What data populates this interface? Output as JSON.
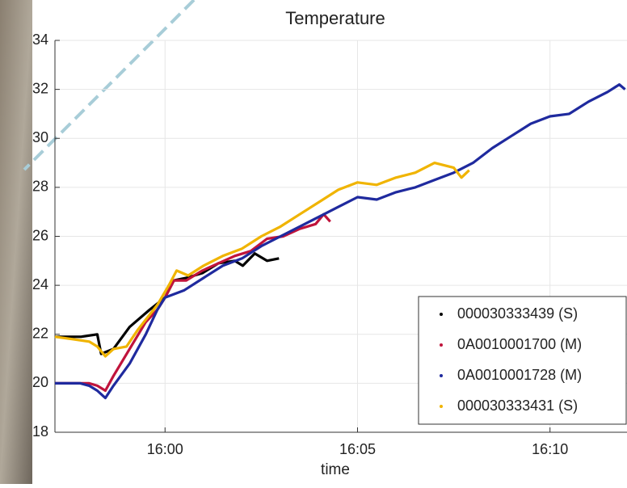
{
  "chart_data": {
    "type": "line",
    "title": "Temperature",
    "x_label": "time",
    "xlim": [
      957.14,
      972
    ],
    "ylim": [
      18,
      34
    ],
    "xticks": [
      {
        "value": 960,
        "label": "16:00"
      },
      {
        "value": 965,
        "label": "16:05"
      },
      {
        "value": 970,
        "label": "16:10"
      }
    ],
    "yticks": [
      18,
      20,
      22,
      24,
      26,
      28,
      30,
      32,
      34
    ],
    "grid": true,
    "legend": "lower right",
    "series": [
      {
        "name": "000030333439 (S)",
        "color": "#000000",
        "x": [
          957.14,
          957.82,
          958.24,
          958.34,
          958.66,
          959.08,
          959.6,
          960,
          960.23,
          960.55,
          960.97,
          961.39,
          961.81,
          962.02,
          962.33,
          962.65,
          962.96
        ],
        "values": [
          21.9,
          21.9,
          22.0,
          21.2,
          21.4,
          22.3,
          23.0,
          23.5,
          24.2,
          24.3,
          24.5,
          24.9,
          25.0,
          24.8,
          25.3,
          25.0,
          25.1
        ]
      },
      {
        "name": "0A0010001700 (M)",
        "color": "#c0143c",
        "x": [
          957.14,
          957.8,
          958.03,
          958.24,
          958.45,
          958.66,
          959.08,
          959.5,
          959.8,
          960,
          960.23,
          960.55,
          960.97,
          961.39,
          961.81,
          962.23,
          962.65,
          963.07,
          963.49,
          963.91,
          964.12,
          964.29
        ],
        "values": [
          20.0,
          20.0,
          20.0,
          19.9,
          19.7,
          20.3,
          21.4,
          22.5,
          23.0,
          23.5,
          24.2,
          24.2,
          24.6,
          24.9,
          25.2,
          25.4,
          25.9,
          26.0,
          26.3,
          26.5,
          26.9,
          26.6
        ]
      },
      {
        "name": "0A0010001728 (M)",
        "color": "#1f2a9e",
        "x": [
          957.14,
          957.8,
          958.03,
          958.24,
          958.45,
          958.66,
          959.08,
          959.5,
          959.8,
          960,
          960.5,
          961,
          961.5,
          962,
          962.5,
          963,
          963.5,
          964,
          964.5,
          965,
          965.5,
          966,
          966.5,
          967,
          967.5,
          968,
          968.5,
          969,
          969.5,
          970,
          970.5,
          971,
          971.5,
          971.8,
          971.95
        ],
        "values": [
          20.0,
          20.0,
          19.9,
          19.7,
          19.4,
          19.9,
          20.8,
          22.0,
          23.0,
          23.5,
          23.8,
          24.3,
          24.8,
          25.1,
          25.6,
          26.0,
          26.4,
          26.8,
          27.2,
          27.6,
          27.5,
          27.8,
          28.0,
          28.3,
          28.6,
          29.0,
          29.6,
          30.1,
          30.6,
          30.9,
          31.0,
          31.5,
          31.9,
          32.2,
          32.0
        ]
      },
      {
        "name": "000030333431 (S)",
        "color": "#f0b400",
        "x": [
          957.14,
          957.6,
          958.03,
          958.24,
          958.45,
          958.66,
          959.0,
          959.3,
          959.8,
          960.1,
          960.3,
          960.6,
          961,
          961.5,
          962,
          962.5,
          963,
          963.5,
          964,
          964.5,
          965,
          965.5,
          966,
          966.5,
          967,
          967.5,
          967.7,
          967.9
        ],
        "values": [
          21.9,
          21.8,
          21.7,
          21.5,
          21.1,
          21.4,
          21.5,
          22.2,
          23.2,
          24.0,
          24.6,
          24.4,
          24.8,
          25.2,
          25.5,
          26.0,
          26.4,
          26.9,
          27.4,
          27.9,
          28.2,
          28.1,
          28.4,
          28.6,
          29.0,
          28.8,
          28.4,
          28.7
        ]
      }
    ]
  }
}
